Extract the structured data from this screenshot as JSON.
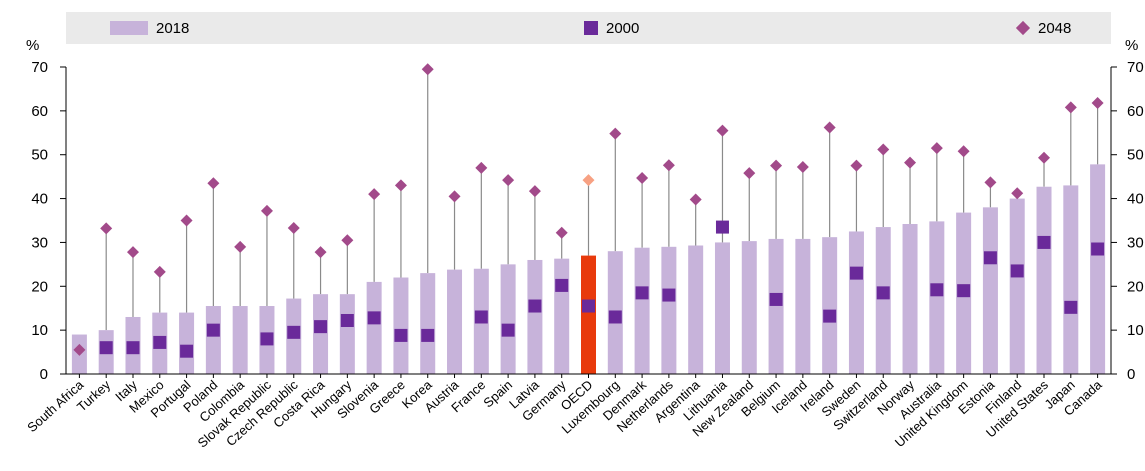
{
  "chart_data": {
    "type": "bar",
    "y_unit": "%",
    "ylim": [
      0,
      70
    ],
    "yticks": [
      0,
      10,
      20,
      30,
      40,
      50,
      60,
      70
    ],
    "grid": false,
    "legend_position": "top",
    "categories": [
      "South Africa",
      "Turkey",
      "Italy",
      "Mexico",
      "Portugal",
      "Poland",
      "Colombia",
      "Slovak Republic",
      "Czech Republic",
      "Costa Rica",
      "Hungary",
      "Slovenia",
      "Greece",
      "Korea",
      "Austria",
      "France",
      "Spain",
      "Latvia",
      "Germany",
      "OECD",
      "Luxembourg",
      "Denmark",
      "Netherlands",
      "Argentina",
      "Lithuania",
      "New Zealand",
      "Belgium",
      "Iceland",
      "Ireland",
      "Sweden",
      "Switzerland",
      "Norway",
      "Australia",
      "United Kingdom",
      "Estonia",
      "Finland",
      "United States",
      "Japan",
      "Canada"
    ],
    "highlight_category": "OECD",
    "series": [
      {
        "name": "2018",
        "mark": "bar",
        "values": [
          9,
          10,
          13,
          14,
          14,
          15.5,
          15.5,
          15.5,
          17.2,
          18.2,
          18.2,
          21,
          22,
          23,
          23.8,
          24,
          25,
          26,
          26.3,
          27,
          28,
          28.8,
          29,
          29.3,
          30,
          30.3,
          30.8,
          30.8,
          31.2,
          32.5,
          33.5,
          34.2,
          34.8,
          36.8,
          38,
          40,
          42.7,
          43,
          47.8
        ]
      },
      {
        "name": "2000",
        "mark": "square",
        "values": [
          null,
          6,
          6,
          7.2,
          5.2,
          10,
          null,
          8,
          9.5,
          10.8,
          12.2,
          12.8,
          8.8,
          8.8,
          null,
          13,
          10,
          15.5,
          20.2,
          15.5,
          13,
          18.5,
          18,
          null,
          33.5,
          null,
          17,
          null,
          13.2,
          23,
          18.5,
          null,
          19.2,
          19,
          26.5,
          23.5,
          30,
          15.2,
          28.5
        ]
      },
      {
        "name": "2048",
        "mark": "diamond",
        "values": [
          5.5,
          33.2,
          27.8,
          23.3,
          35,
          43.5,
          29,
          37.2,
          33.3,
          27.8,
          30.5,
          41,
          43,
          69.5,
          40.5,
          47,
          44.2,
          41.7,
          32.2,
          44.2,
          54.8,
          44.7,
          47.6,
          39.8,
          55.5,
          45.8,
          47.5,
          47.2,
          56.2,
          47.5,
          51.2,
          48.2,
          51.5,
          50.8,
          43.7,
          41.2,
          49.3,
          60.8,
          61.8
        ]
      }
    ]
  },
  "colors": {
    "bar_2018": "#c7b3da",
    "bar_highlight": "#e83a0c",
    "marker_2000": "#6a2a9a",
    "marker_2048": "#a24a8a",
    "marker_2048_highlight": "#f7a183",
    "whisker": "#8a8a8a",
    "axis": "#000000"
  }
}
